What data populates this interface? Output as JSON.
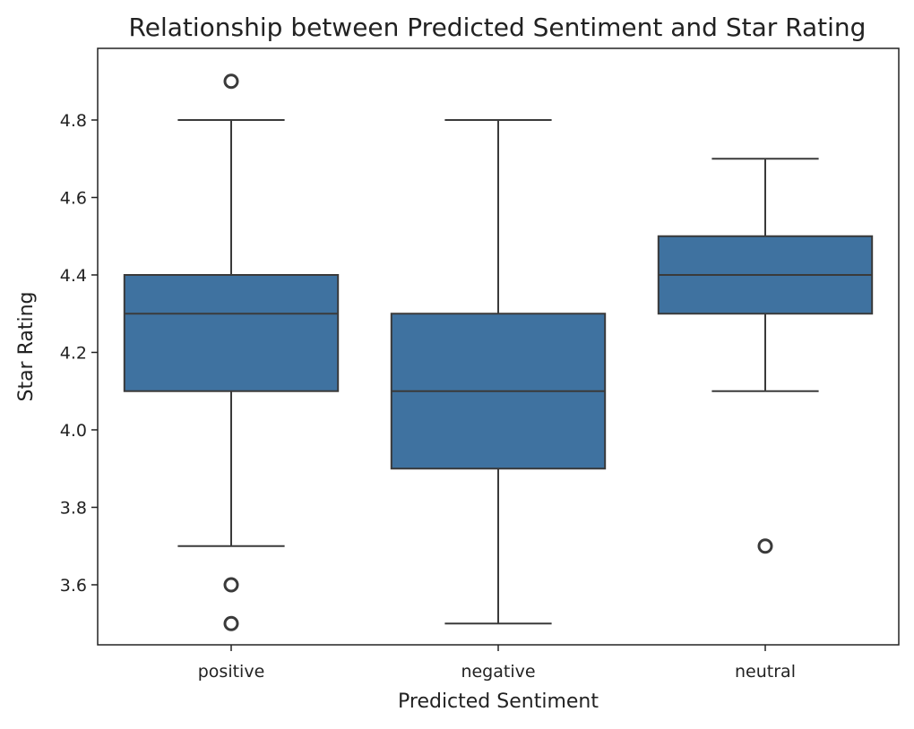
{
  "chart_data": {
    "type": "boxplot",
    "title": "Relationship between Predicted Sentiment and Star Rating",
    "xlabel": "Predicted Sentiment",
    "ylabel": "Star Rating",
    "categories": [
      "positive",
      "negative",
      "neutral"
    ],
    "ylim": [
      3.445,
      4.985
    ],
    "yticks": [
      3.6,
      3.8,
      4.0,
      4.2,
      4.4,
      4.6,
      4.8
    ],
    "ytick_labels": [
      "3.6",
      "3.8",
      "4.0",
      "4.2",
      "4.4",
      "4.6",
      "4.8"
    ],
    "grid": false,
    "box_color": "#3f72a0",
    "line_color": "#3a3a3a",
    "boxes": [
      {
        "category": "positive",
        "whisker_low": 3.7,
        "q1": 4.1,
        "median": 4.3,
        "q3": 4.4,
        "whisker_high": 4.8,
        "outliers": [
          4.9,
          3.6,
          3.5
        ]
      },
      {
        "category": "negative",
        "whisker_low": 3.5,
        "q1": 3.9,
        "median": 4.1,
        "q3": 4.3,
        "whisker_high": 4.8,
        "outliers": []
      },
      {
        "category": "neutral",
        "whisker_low": 4.1,
        "q1": 4.3,
        "median": 4.4,
        "q3": 4.5,
        "whisker_high": 4.7,
        "outliers": [
          3.7
        ]
      }
    ]
  }
}
